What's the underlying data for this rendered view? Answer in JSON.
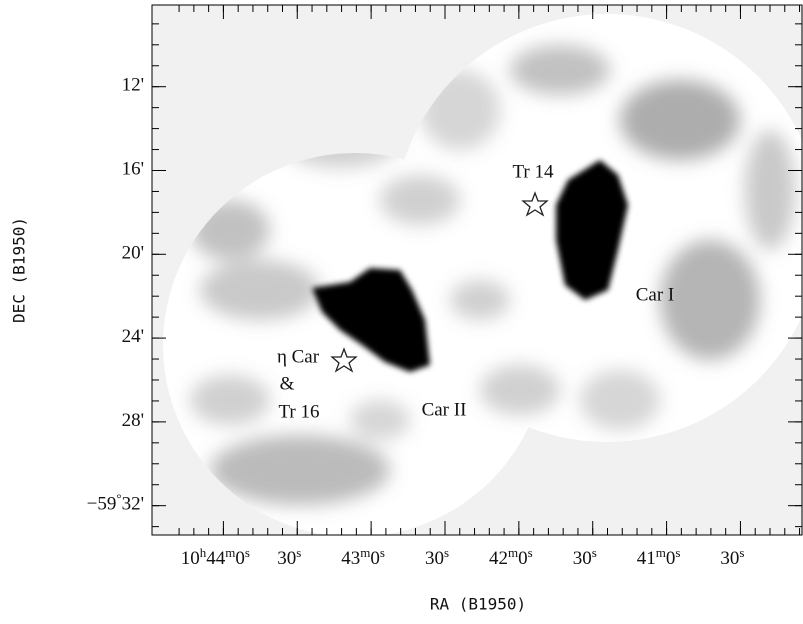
{
  "chart_data": {
    "type": "image",
    "xlabel": "RA (B1950)",
    "ylabel": "DEC (B1950)",
    "xlim": [
      38669,
      38405
    ],
    "xticks": [
      {
        "value": 38640,
        "label": "10h44m0s"
      },
      {
        "value": 38610,
        "label": "30s"
      },
      {
        "value": 38580,
        "label": "43m0s"
      },
      {
        "value": 38550,
        "label": "30s"
      },
      {
        "value": 38520,
        "label": "42m0s"
      },
      {
        "value": 38490,
        "label": "30s"
      },
      {
        "value": 38460,
        "label": "41m0s"
      },
      {
        "value": 38430,
        "label": "30s"
      }
    ],
    "ylim": [
      -3573.4,
      -3548.1
    ],
    "yticks": [
      {
        "value": -3552,
        "label": "12'"
      },
      {
        "value": -3556,
        "label": "16'"
      },
      {
        "value": -3560,
        "label": "20'"
      },
      {
        "value": -3564,
        "label": "24'"
      },
      {
        "value": -3568,
        "label": "28'"
      },
      {
        "value": -3572,
        "label": "−59°32'"
      }
    ],
    "annotations": [
      "Tr 14",
      "η Car",
      "&",
      "Tr 16",
      "Car II",
      "Car I"
    ]
  }
}
